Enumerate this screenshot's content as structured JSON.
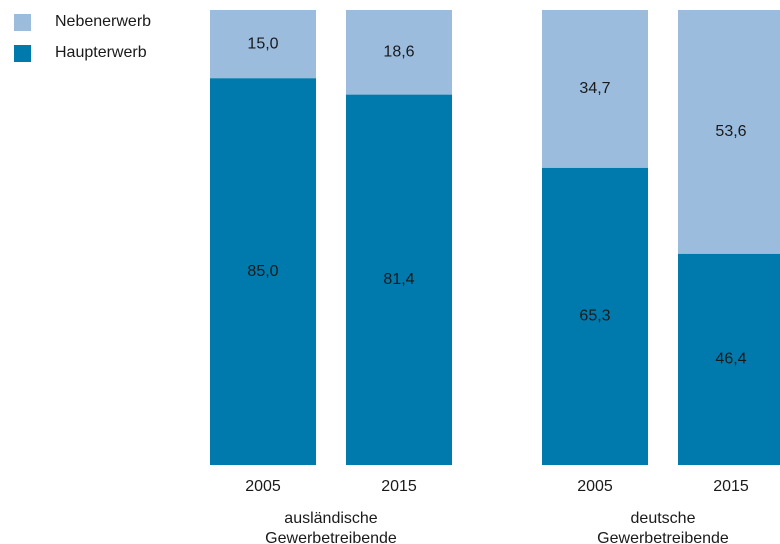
{
  "chart_data": {
    "type": "bar",
    "stacked": true,
    "percent": true,
    "groups": [
      {
        "label_lines": [
          "ausländische",
          "Gewerbetreibende"
        ],
        "categories": [
          "2005",
          "2015"
        ]
      },
      {
        "label_lines": [
          "deutsche",
          "Gewerbetreibende"
        ],
        "categories": [
          "2005",
          "2015"
        ]
      }
    ],
    "series": [
      {
        "name": "Haupterwerb",
        "color": "#007aad",
        "values": [
          85.0,
          81.4,
          65.3,
          46.4
        ],
        "labels": [
          "85,0",
          "81,4",
          "65,3",
          "46,4"
        ]
      },
      {
        "name": "Nebenerwerb",
        "color": "#9bbcdd",
        "values": [
          15.0,
          18.6,
          34.7,
          53.6
        ],
        "labels": [
          "15,0",
          "18,6",
          "34,7",
          "53,6"
        ]
      }
    ],
    "ylim": [
      0,
      100
    ],
    "legend_position": "top-left"
  }
}
